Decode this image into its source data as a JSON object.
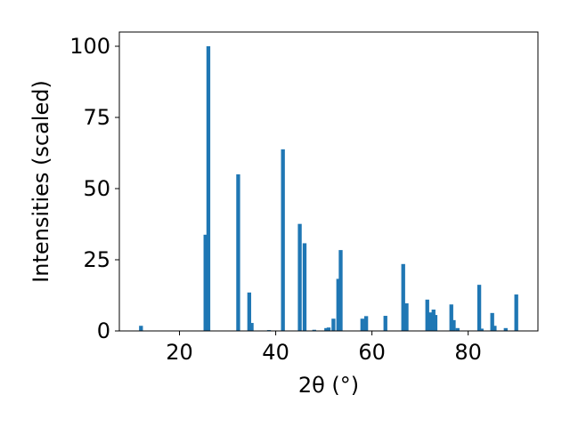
{
  "chart_data": {
    "type": "bar",
    "xlabel": "2θ (°)",
    "ylabel": "Intensities (scaled)",
    "xlim": [
      7.5,
      94.5
    ],
    "ylim": [
      0,
      105
    ],
    "x_ticks": [
      20,
      40,
      60,
      80
    ],
    "y_ticks": [
      0,
      25,
      50,
      75,
      100
    ],
    "grid": false,
    "bar_color": "#1f77b4",
    "bar_width": 0.8,
    "x": [
      12.0,
      25.4,
      26.0,
      32.2,
      34.5,
      35.0,
      38.6,
      41.5,
      45.0,
      46.0,
      48.0,
      50.5,
      51.0,
      52.0,
      53.0,
      53.5,
      58.0,
      58.8,
      62.8,
      66.5,
      67.2,
      71.5,
      72.2,
      72.8,
      73.2,
      76.5,
      77.0,
      77.8,
      82.3,
      82.8,
      85.0,
      85.5,
      87.8,
      90.0
    ],
    "values": [
      1.8,
      33.8,
      100.0,
      55.0,
      13.5,
      2.8,
      0.3,
      63.8,
      37.6,
      30.8,
      0.4,
      1.0,
      1.2,
      4.3,
      18.3,
      28.4,
      4.3,
      5.2,
      5.3,
      23.5,
      9.7,
      11.0,
      6.5,
      7.5,
      5.6,
      9.3,
      3.8,
      1.0,
      16.2,
      0.8,
      6.3,
      1.8,
      1.0,
      12.8
    ]
  }
}
